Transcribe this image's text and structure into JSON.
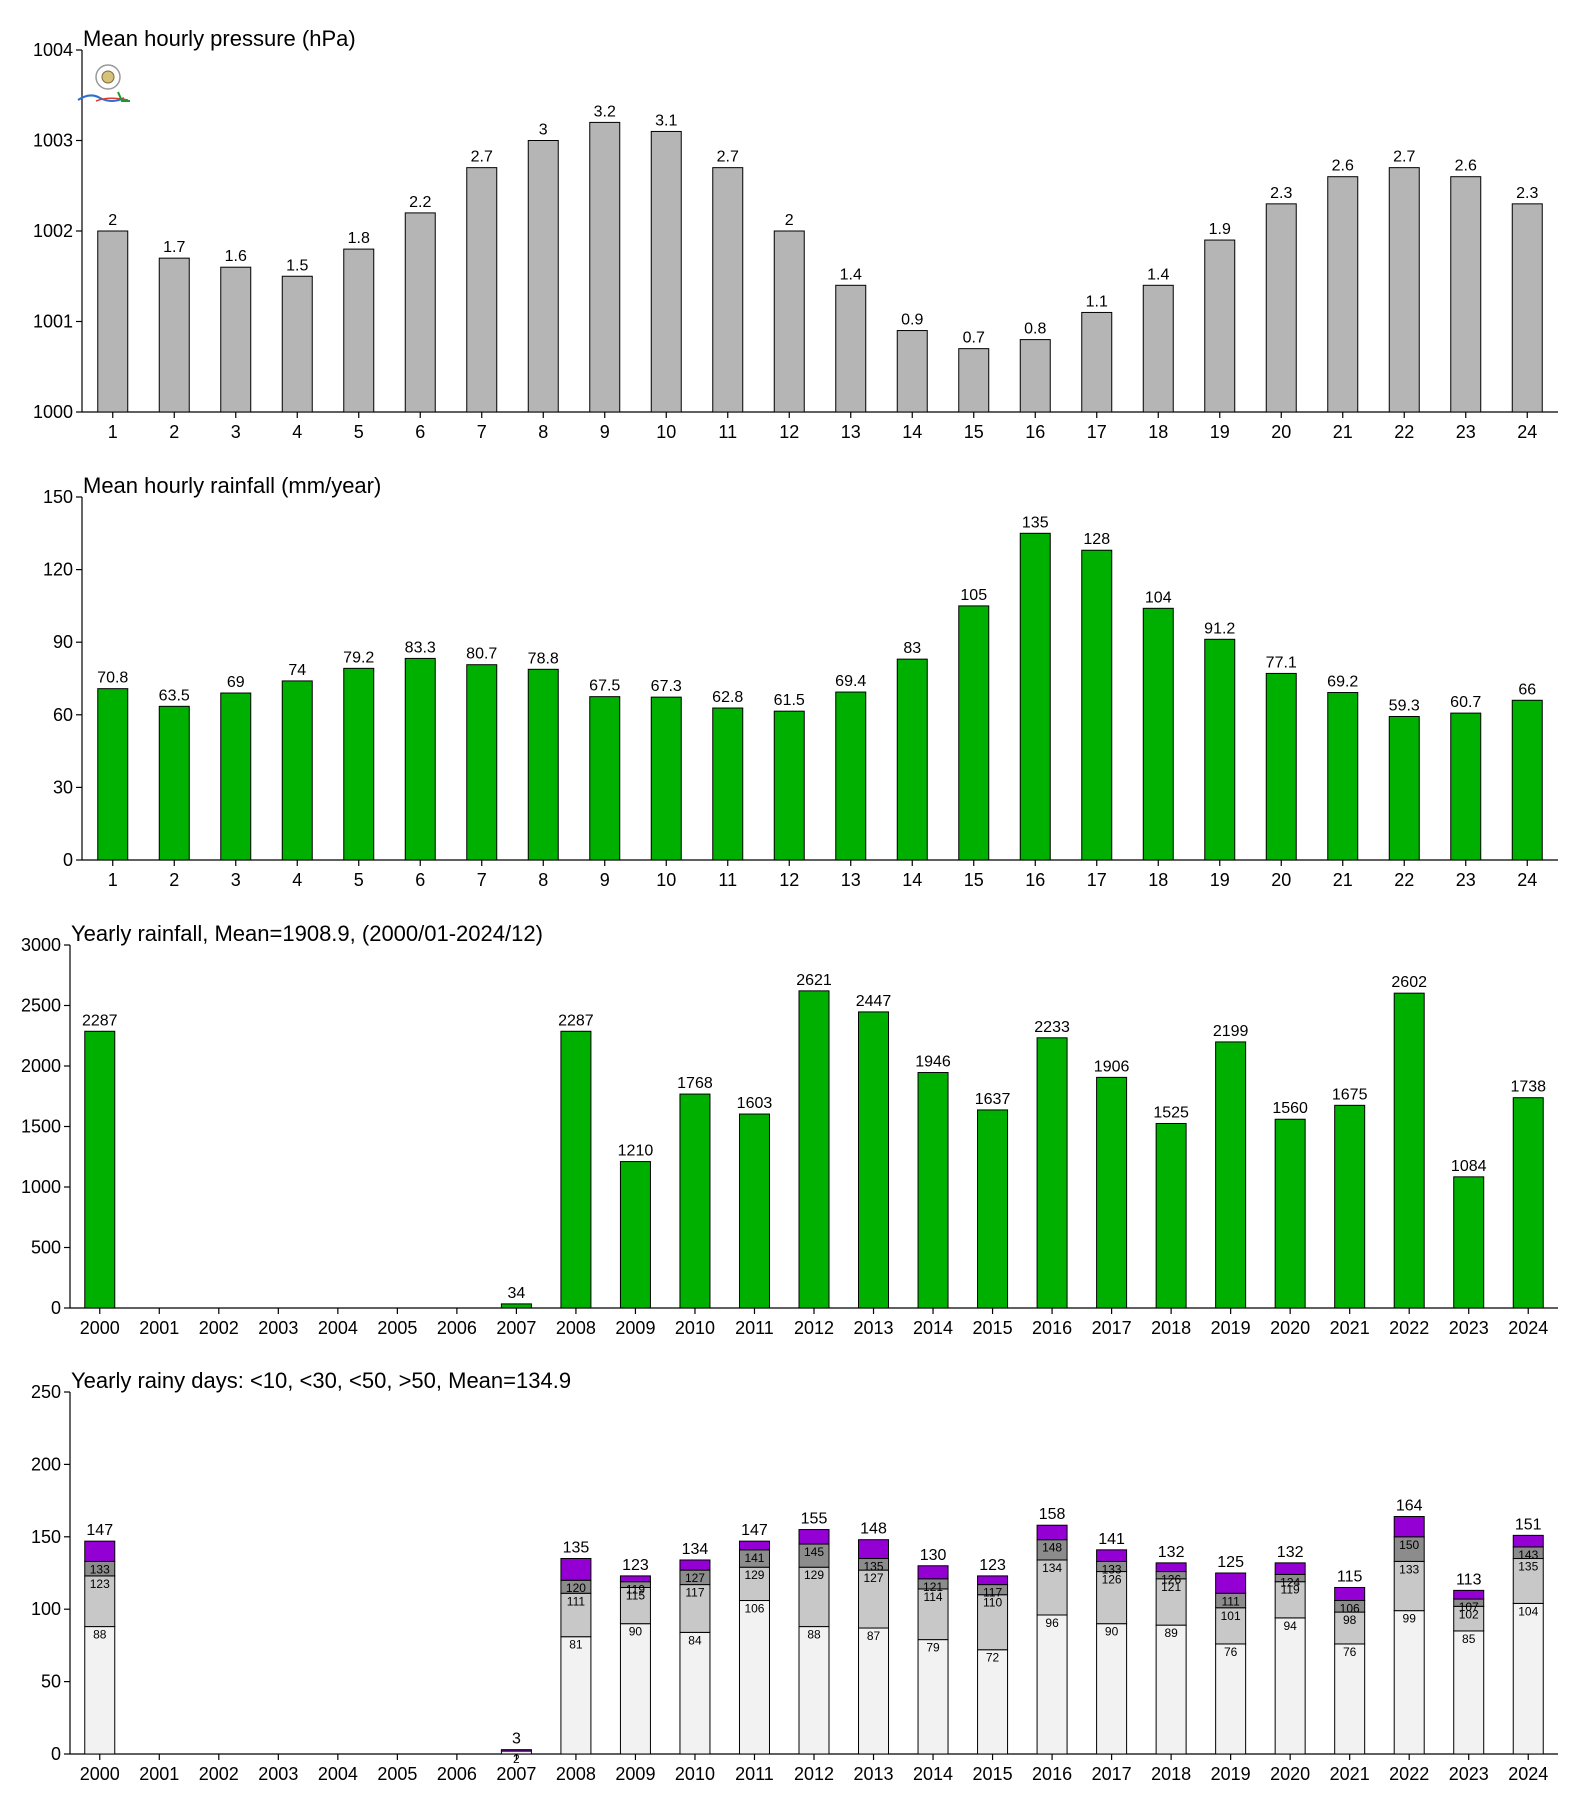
{
  "chart_data": [
    {
      "type": "bar",
      "title": "Mean hourly pressure (hPa)",
      "categories": [
        "1",
        "2",
        "3",
        "4",
        "5",
        "6",
        "7",
        "8",
        "9",
        "10",
        "11",
        "12",
        "13",
        "14",
        "15",
        "16",
        "17",
        "18",
        "19",
        "20",
        "21",
        "22",
        "23",
        "24"
      ],
      "values": [
        1002.0,
        1001.7,
        1001.6,
        1001.5,
        1001.8,
        1002.2,
        1002.7,
        1003.0,
        1003.2,
        1003.1,
        1002.7,
        1002.0,
        1001.4,
        1000.9,
        1000.7,
        1000.8,
        1001.1,
        1001.4,
        1001.9,
        1002.3,
        1002.6,
        1002.7,
        1002.6,
        1002.3
      ],
      "labels": [
        "2",
        "1.7",
        "1.6",
        "1.5",
        "1.8",
        "2.2",
        "2.7",
        "3",
        "3.2",
        "3.1",
        "2.7",
        "2",
        "1.4",
        "0.9",
        "0.7",
        "0.8",
        "1.1",
        "1.4",
        "1.9",
        "2.3",
        "2.6",
        "2.7",
        "2.6",
        "2.3"
      ],
      "ylim": [
        1000,
        1004
      ],
      "yticks": [
        "1000",
        "1001",
        "1002",
        "1003",
        "1004"
      ],
      "color": "#b5b5b5",
      "has_logo": true
    },
    {
      "type": "bar",
      "title": "Mean hourly rainfall (mm/year)",
      "categories": [
        "1",
        "2",
        "3",
        "4",
        "5",
        "6",
        "7",
        "8",
        "9",
        "10",
        "11",
        "12",
        "13",
        "14",
        "15",
        "16",
        "17",
        "18",
        "19",
        "20",
        "21",
        "22",
        "23",
        "24"
      ],
      "values": [
        70.8,
        63.5,
        69,
        74,
        79.2,
        83.3,
        80.7,
        78.8,
        67.5,
        67.3,
        62.8,
        61.5,
        69.4,
        83,
        105,
        135,
        128,
        104,
        91.2,
        77.1,
        69.2,
        59.3,
        60.7,
        66
      ],
      "labels": [
        "70.8",
        "63.5",
        "69",
        "74",
        "79.2",
        "83.3",
        "80.7",
        "78.8",
        "67.5",
        "67.3",
        "62.8",
        "61.5",
        "69.4",
        "83",
        "105",
        "135",
        "128",
        "104",
        "91.2",
        "77.1",
        "69.2",
        "59.3",
        "60.7",
        "66"
      ],
      "ylim": [
        0,
        150
      ],
      "yticks": [
        "0",
        "30",
        "60",
        "90",
        "120",
        "150"
      ],
      "color": "#00b000"
    },
    {
      "type": "bar",
      "title": "Yearly rainfall, Mean=1908.9, (2000/01-2024/12)",
      "categories": [
        "2000",
        "2001",
        "2002",
        "2003",
        "2004",
        "2005",
        "2006",
        "2007",
        "2008",
        "2009",
        "2010",
        "2011",
        "2012",
        "2013",
        "2014",
        "2015",
        "2016",
        "2017",
        "2018",
        "2019",
        "2020",
        "2021",
        "2022",
        "2023",
        "2024"
      ],
      "values": [
        2287,
        0,
        0,
        0,
        0,
        0,
        0,
        34,
        2287,
        1210,
        1768,
        1603,
        2621,
        2447,
        1946,
        1637,
        2233,
        1906,
        1525,
        2199,
        1560,
        1675,
        2602,
        1084,
        1738
      ],
      "labels": [
        "2287",
        "",
        "",
        "",
        "",
        "",
        "",
        "34",
        "2287",
        "1210",
        "1768",
        "1603",
        "2621",
        "2447",
        "1946",
        "1637",
        "2233",
        "1906",
        "1525",
        "2199",
        "1560",
        "1675",
        "2602",
        "1084",
        "1738"
      ],
      "ylim": [
        0,
        3000
      ],
      "yticks": [
        "0",
        "500",
        "1000",
        "1500",
        "2000",
        "2500",
        "3000"
      ],
      "color": "#00b000"
    },
    {
      "type": "bar",
      "stacked": true,
      "title": "Yearly rainy days: <10, <30, <50, >50, Mean=134.9",
      "categories": [
        "2000",
        "2001",
        "2002",
        "2003",
        "2004",
        "2005",
        "2006",
        "2007",
        "2008",
        "2009",
        "2010",
        "2011",
        "2012",
        "2013",
        "2014",
        "2015",
        "2016",
        "2017",
        "2018",
        "2019",
        "2020",
        "2021",
        "2022",
        "2023",
        "2024"
      ],
      "ylim": [
        0,
        250
      ],
      "yticks": [
        "0",
        "50",
        "100",
        "150",
        "200",
        "250"
      ],
      "colors": [
        "#f2f2f2",
        "#c8c8c8",
        "#8c8c8c",
        "#9400d3"
      ],
      "c1": [
        88,
        0,
        0,
        0,
        0,
        0,
        0,
        2,
        81,
        90,
        84,
        106,
        88,
        87,
        79,
        72,
        96,
        90,
        89,
        76,
        94,
        76,
        99,
        85,
        104
      ],
      "c2": [
        123,
        0,
        0,
        0,
        0,
        0,
        0,
        2,
        111,
        115,
        117,
        129,
        129,
        127,
        114,
        110,
        134,
        126,
        121,
        101,
        119,
        98,
        133,
        102,
        135
      ],
      "c3": [
        133,
        0,
        0,
        0,
        0,
        0,
        0,
        2,
        120,
        119,
        127,
        141,
        145,
        135,
        121,
        117,
        148,
        133,
        126,
        111,
        124,
        106,
        150,
        107,
        143
      ],
      "totals": [
        147,
        0,
        0,
        0,
        0,
        0,
        0,
        3,
        135,
        123,
        134,
        147,
        155,
        148,
        130,
        123,
        158,
        141,
        132,
        125,
        132,
        115,
        164,
        113,
        151
      ],
      "total_labels": [
        "147",
        "",
        "",
        "",
        "",
        "",
        "",
        "3",
        "135",
        "123",
        "134",
        "147",
        "155",
        "148",
        "130",
        "123",
        "158",
        "141",
        "132",
        "125",
        "132",
        "115",
        "164",
        "113",
        "151"
      ],
      "seg_labels": [
        [
          "88",
          "123",
          "133"
        ],
        [],
        [],
        [],
        [],
        [],
        [],
        [
          "2",
          "",
          ""
        ],
        [
          "81",
          "111",
          "120"
        ],
        [
          "90",
          "115",
          "119"
        ],
        [
          "84",
          "117",
          "127"
        ],
        [
          "106",
          "129",
          "141"
        ],
        [
          "88",
          "129",
          "145"
        ],
        [
          "87",
          "127",
          "135"
        ],
        [
          "79",
          "114",
          "121"
        ],
        [
          "72",
          "110",
          "117"
        ],
        [
          "96",
          "134",
          "148"
        ],
        [
          "90",
          "126",
          "133"
        ],
        [
          "89",
          "121",
          "126"
        ],
        [
          "76",
          "101",
          "111"
        ],
        [
          "94",
          "119",
          "124"
        ],
        [
          "76",
          "98",
          "106"
        ],
        [
          "99",
          "133",
          "150"
        ],
        [
          "85",
          "102",
          "107"
        ],
        [
          "104",
          "135",
          "143"
        ]
      ]
    }
  ]
}
